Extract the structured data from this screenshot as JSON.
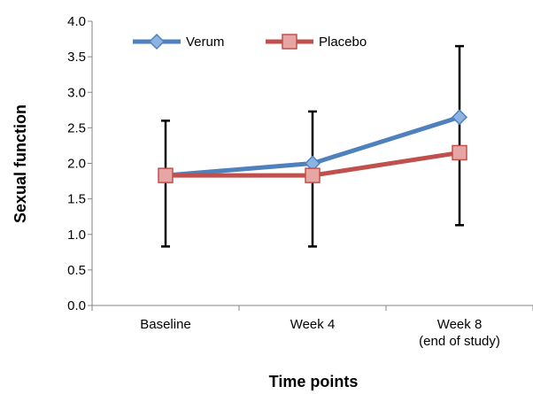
{
  "chart_data": {
    "type": "line",
    "xlabel": "Time points",
    "ylabel": "Sexual function",
    "ylim": [
      0.0,
      4.0
    ],
    "y_ticks": [
      "0.0",
      "0.5",
      "1.0",
      "1.5",
      "2.0",
      "2.5",
      "3.0",
      "3.5",
      "4.0"
    ],
    "categories": [
      [
        "Baseline"
      ],
      [
        "Week 4"
      ],
      [
        "Week 8",
        "(end of study)"
      ]
    ],
    "legend_position": "top-left",
    "grid": false,
    "series": [
      {
        "name": "Verum",
        "color": "#4F81BD",
        "marker": "diamond",
        "values": [
          1.83,
          2.0,
          2.65
        ]
      },
      {
        "name": "Placebo",
        "color": "#C0504D",
        "marker": "square",
        "values": [
          1.83,
          1.83,
          2.15
        ]
      }
    ],
    "error_bars": [
      {
        "low": 0.83,
        "high": 2.6
      },
      {
        "low": 0.83,
        "high": 2.73
      },
      {
        "low": 1.13,
        "high": 3.65
      }
    ]
  }
}
